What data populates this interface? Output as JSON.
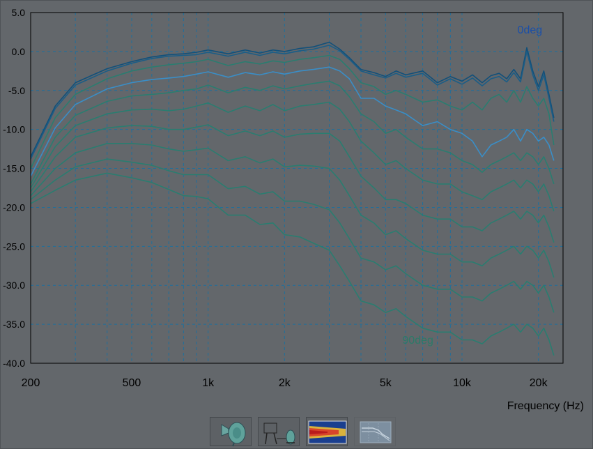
{
  "chart_data": {
    "type": "line",
    "xlabel": "Frequency (Hz)",
    "ylabel": "",
    "x_scale": "log",
    "xlim": [
      200,
      25000
    ],
    "ylim": [
      -40,
      5
    ],
    "grid": true,
    "xticks": [
      {
        "value": 200,
        "label": "200"
      },
      {
        "value": 500,
        "label": "500"
      },
      {
        "value": 1000,
        "label": "1k"
      },
      {
        "value": 2000,
        "label": "2k"
      },
      {
        "value": 5000,
        "label": "5k"
      },
      {
        "value": 10000,
        "label": "10k"
      },
      {
        "value": 20000,
        "label": "20k"
      }
    ],
    "yticks": [
      {
        "value": 5,
        "label": "5.0"
      },
      {
        "value": 0,
        "label": "0.0"
      },
      {
        "value": -5,
        "label": "-5.0"
      },
      {
        "value": -10,
        "label": "-10.0"
      },
      {
        "value": -15,
        "label": "-15.0"
      },
      {
        "value": -20,
        "label": "-20.0"
      },
      {
        "value": -25,
        "label": "-25.0"
      },
      {
        "value": -30,
        "label": "-30.0"
      },
      {
        "value": -35,
        "label": "-35.0"
      },
      {
        "value": -40,
        "label": "-40.0"
      }
    ],
    "annotations": [
      {
        "text": "0deg",
        "x": 18500,
        "y": 2.3,
        "color": "#1a4fa8"
      },
      {
        "text": "90deg",
        "x": 6700,
        "y": -37.5,
        "color": "#2c7a68"
      }
    ],
    "x": [
      200,
      250,
      300,
      400,
      500,
      600,
      700,
      800,
      900,
      1000,
      1200,
      1400,
      1600,
      1800,
      2000,
      2300,
      2600,
      3000,
      3300,
      3600,
      4000,
      4500,
      5000,
      5500,
      6000,
      7000,
      8000,
      9000,
      10000,
      11000,
      12000,
      13000,
      14000,
      15000,
      16000,
      17000,
      18000,
      19000,
      20000,
      21000,
      22000,
      23000
    ],
    "series": [
      {
        "values": [
          -13.5,
          -7,
          -4,
          -2.2,
          -1.3,
          -0.7,
          -0.4,
          -0.3,
          -0.1,
          0.2,
          -0.3,
          0.2,
          -0.2,
          0.2,
          0,
          0.4,
          0.6,
          1.2,
          0.3,
          -0.8,
          -2.3,
          -2.7,
          -3.2,
          -2.5,
          -3.0,
          -2.5,
          -4.0,
          -3.2,
          -3.8,
          -3.0,
          -4.0,
          -3.1,
          -2.8,
          -3.5,
          -2.3,
          -3.5,
          0.5,
          -2.5,
          -4.5,
          -2.5,
          -5.5,
          -8.5
        ],
        "color": "#12507a"
      },
      {
        "values": [
          -13.8,
          -7.3,
          -4.3,
          -2.5,
          -1.5,
          -0.9,
          -0.6,
          -0.5,
          -0.4,
          -0.1,
          -0.6,
          -0.1,
          -0.5,
          -0.1,
          -0.3,
          0.1,
          0.3,
          0.8,
          0.1,
          -1.0,
          -2.5,
          -3.0,
          -3.4,
          -2.8,
          -3.3,
          -2.8,
          -4.3,
          -3.5,
          -4.2,
          -3.4,
          -4.4,
          -3.5,
          -3.2,
          -3.9,
          -2.7,
          -3.9,
          0,
          -3.0,
          -5.0,
          -3.0,
          -6.0,
          -9.0
        ],
        "color": "#1b5d86"
      },
      {
        "values": [
          -15,
          -8.5,
          -5.5,
          -3.5,
          -2.5,
          -2,
          -1.7,
          -1.5,
          -1.3,
          -1,
          -1.8,
          -1.3,
          -1.6,
          -1.2,
          -1.4,
          -1.0,
          -0.8,
          -0.5,
          -1.0,
          -2.2,
          -4.0,
          -4.5,
          -5.5,
          -5.0,
          -5.5,
          -6.5,
          -6.2,
          -7.0,
          -7.5,
          -6.5,
          -7.5,
          -6.0,
          -5.5,
          -6.5,
          -5.0,
          -6.5,
          -4.5,
          -6.0,
          -7.0,
          -6.0,
          -8.0,
          -12.0
        ],
        "color": "#2a7d70"
      },
      {
        "values": [
          -16,
          -9.8,
          -6.8,
          -4.8,
          -4.0,
          -3.6,
          -3.4,
          -3.2,
          -2.9,
          -2.6,
          -3.3,
          -2.7,
          -3.0,
          -2.6,
          -2.9,
          -2.5,
          -2.3,
          -2.0,
          -2.5,
          -3.5,
          -6.0,
          -6.0,
          -7.0,
          -7.5,
          -8.0,
          -9.5,
          -9.0,
          -10.0,
          -10.5,
          -11.5,
          -13.5,
          -12.0,
          -11.5,
          -11.0,
          -10.0,
          -11.5,
          -10.0,
          -10.5,
          -11.5,
          -11.0,
          -12.0,
          -14.0
        ],
        "color": "#3a8ec7"
      },
      {
        "values": [
          -17,
          -11,
          -8.2,
          -6.4,
          -5.7,
          -5.5,
          -5.3,
          -5.0,
          -4.8,
          -4.3,
          -5.3,
          -4.6,
          -5.0,
          -4.4,
          -4.8,
          -4.4,
          -4.1,
          -3.8,
          -4.4,
          -5.8,
          -8.0,
          -9.0,
          -10.5,
          -10.0,
          -11.0,
          -12.5,
          -12.5,
          -13.0,
          -14.0,
          -14.5,
          -15.5,
          -14.5,
          -14.0,
          -13.5,
          -13.0,
          -14.0,
          -13.0,
          -13.5,
          -14.5,
          -13.5,
          -15.0,
          -17.0
        ],
        "color": "#2a7d70"
      },
      {
        "values": [
          -17.5,
          -12.2,
          -9.5,
          -8.0,
          -7.5,
          -7.4,
          -7.6,
          -7.4,
          -7.0,
          -6.6,
          -7.8,
          -7.0,
          -7.6,
          -6.8,
          -7.6,
          -7.0,
          -6.8,
          -6.5,
          -7.4,
          -9.0,
          -11.5,
          -13.0,
          -14.5,
          -14.0,
          -15.0,
          -16.5,
          -17.0,
          -17.0,
          -18.0,
          -18.5,
          -19.0,
          -18.0,
          -17.5,
          -17.0,
          -16.5,
          -17.5,
          -16.5,
          -17.0,
          -18.0,
          -17.0,
          -18.5,
          -20.5
        ],
        "color": "#2a7d70"
      },
      {
        "values": [
          -18,
          -13.5,
          -11,
          -9.8,
          -9.5,
          -9.6,
          -10.0,
          -10.0,
          -9.7,
          -9.4,
          -10.8,
          -10.2,
          -10.8,
          -10.2,
          -11.0,
          -10.6,
          -10.5,
          -10.5,
          -11.5,
          -13.5,
          -16.0,
          -17.5,
          -19.0,
          -19.0,
          -19.5,
          -21.0,
          -21.5,
          -21.5,
          -22.5,
          -22.5,
          -23.0,
          -22.0,
          -21.5,
          -21.0,
          -20.5,
          -21.5,
          -20.5,
          -21.0,
          -22.0,
          -21.0,
          -22.5,
          -24.5
        ],
        "color": "#2a7d70"
      },
      {
        "values": [
          -18.5,
          -15,
          -13,
          -11.8,
          -11.8,
          -12.0,
          -12.5,
          -12.8,
          -12.6,
          -12.4,
          -14.0,
          -13.5,
          -14.3,
          -13.8,
          -14.8,
          -14.6,
          -14.7,
          -15.0,
          -16.5,
          -18.5,
          -21.0,
          -22.0,
          -23.5,
          -23.0,
          -24.0,
          -25.5,
          -26.0,
          -26.0,
          -27.0,
          -27.0,
          -27.5,
          -26.5,
          -26.0,
          -25.5,
          -25.0,
          -26.0,
          -25.0,
          -25.5,
          -26.5,
          -25.5,
          -27.0,
          -29.0
        ],
        "color": "#2a7d70"
      },
      {
        "values": [
          -19,
          -16.5,
          -14.8,
          -13.8,
          -14.2,
          -14.6,
          -15.3,
          -15.8,
          -15.8,
          -15.8,
          -17.6,
          -17.3,
          -18.3,
          -18.0,
          -19.2,
          -19.2,
          -19.6,
          -20.3,
          -22.0,
          -24.0,
          -26.5,
          -27.0,
          -28.0,
          -27.5,
          -28.5,
          -30.0,
          -30.5,
          -30.5,
          -31.5,
          -31.5,
          -32.0,
          -31.0,
          -30.5,
          -30.0,
          -29.5,
          -30.5,
          -29.5,
          -30.0,
          -31.0,
          -30.0,
          -31.5,
          -33.5
        ],
        "color": "#2a7d70"
      },
      {
        "values": [
          -19.5,
          -17.8,
          -16.5,
          -15.6,
          -16.2,
          -16.8,
          -17.7,
          -18.5,
          -18.6,
          -18.9,
          -21.0,
          -21.0,
          -22.2,
          -22.0,
          -23.5,
          -23.8,
          -24.6,
          -25.5,
          -27.5,
          -29.5,
          -32.0,
          -32.5,
          -33.5,
          -33.0,
          -34.0,
          -35.5,
          -36.0,
          -36.0,
          -37.0,
          -37.0,
          -37.5,
          -36.5,
          -36.0,
          -35.5,
          -35.0,
          -36.0,
          -35.0,
          -35.5,
          -36.5,
          -35.5,
          -37.0,
          -39.0
        ],
        "color": "#2a7d70"
      }
    ]
  },
  "toolbar": {
    "buttons": [
      {
        "icon": "horn-speaker-icon"
      },
      {
        "icon": "polar-setup-icon"
      },
      {
        "icon": "sonogram-icon"
      },
      {
        "icon": "graph-view-icon"
      }
    ]
  },
  "colors": {
    "background": "#63676b",
    "grid": "#1f6f9c",
    "axis": "#000000",
    "curve_on_axis": "#12507a",
    "curve_highlight": "#3a8ec7",
    "curve_off_axis": "#2a7d70"
  }
}
